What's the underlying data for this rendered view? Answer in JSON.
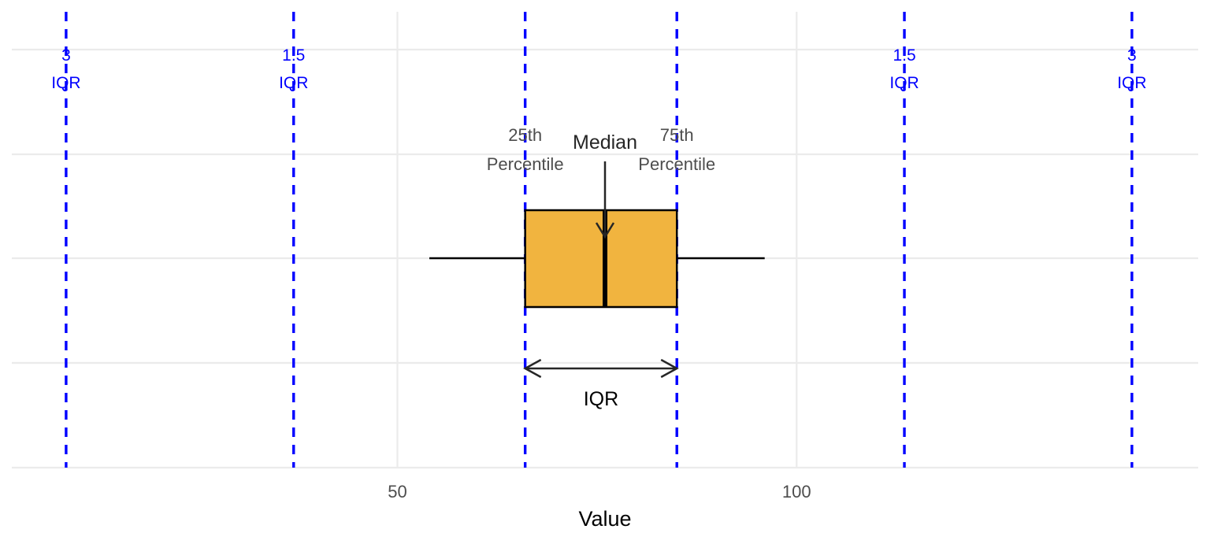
{
  "chart_data": {
    "type": "boxplot",
    "xlabel": "Value",
    "x_ticks": [
      50,
      100
    ],
    "xlim": [
      1.7,
      150.3
    ],
    "grid": true,
    "box": {
      "whisker_low": 54,
      "q1": 66,
      "median": 76,
      "q3": 85,
      "whisker_high": 96,
      "fill": "#f1b43f"
    },
    "reference_lines": [
      {
        "x": 8.5,
        "label_line1": "3",
        "label_line2": "IQR"
      },
      {
        "x": 37,
        "label_line1": "1.5",
        "label_line2": "IQR"
      },
      {
        "x": 66,
        "label_line1": "",
        "label_line2": ""
      },
      {
        "x": 85,
        "label_line1": "",
        "label_line2": ""
      },
      {
        "x": 113.5,
        "label_line1": "1.5",
        "label_line2": "IQR"
      },
      {
        "x": 142,
        "label_line1": "3",
        "label_line2": "IQR"
      }
    ],
    "annotations": {
      "q1_label_line1": "25th",
      "q1_label_line2": "Percentile",
      "q3_label_line1": "75th",
      "q3_label_line2": "Percentile",
      "median_label": "Median",
      "iqr_label": "IQR"
    },
    "colors": {
      "reference_line": "#0000ff",
      "box_fill": "#f1b43f",
      "grid": "#ebebeb"
    }
  }
}
